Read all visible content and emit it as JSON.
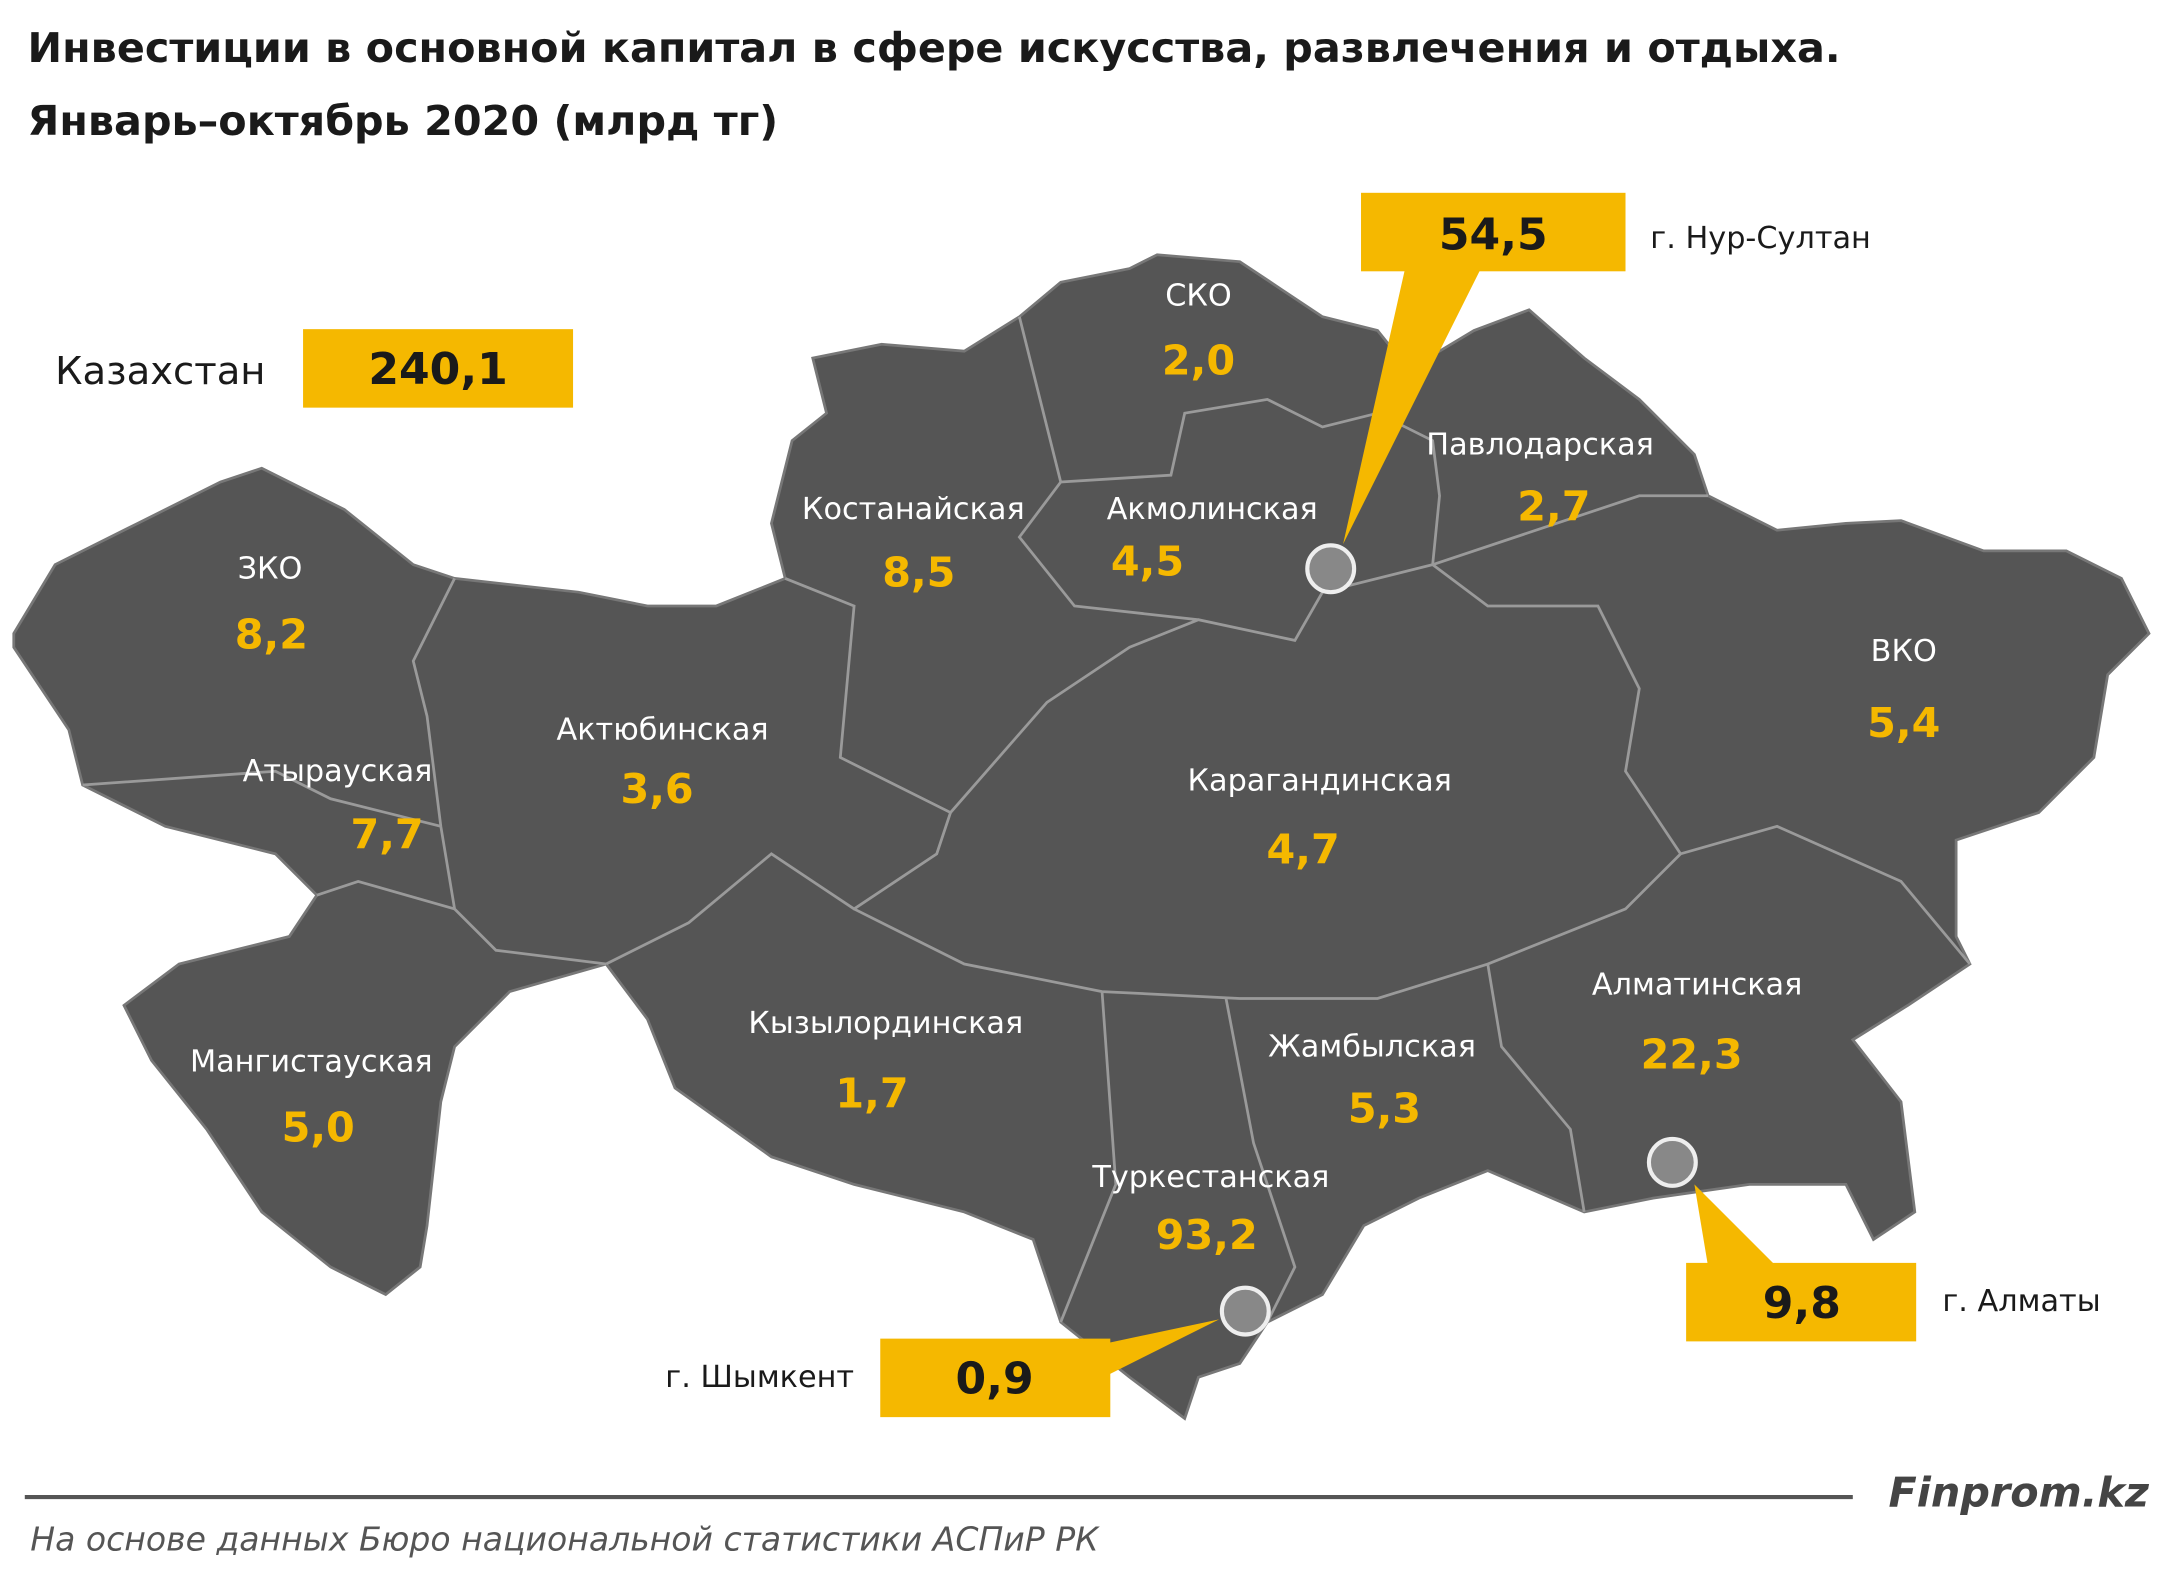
{
  "title": [
    "Инвестиции в основной капитал в сфере искусства, развлечения и отдыха.",
    "Январь–октябрь 2020 (млрд тг)"
  ],
  "total": {
    "name": "Казахстан",
    "value": "240,1"
  },
  "regions": [
    {
      "name": "СКО",
      "value": "2,0"
    },
    {
      "name": "Костанайская",
      "value": "8,5"
    },
    {
      "name": "Акмолинская",
      "value": "4,5"
    },
    {
      "name": "Павлодарская",
      "value": "2,7"
    },
    {
      "name": "ЗКО",
      "value": "8,2"
    },
    {
      "name": "Актюбинская",
      "value": "3,6"
    },
    {
      "name": "Атырауская",
      "value": "7,7"
    },
    {
      "name": "ВКО",
      "value": "5,4"
    },
    {
      "name": "Карагандинская",
      "value": "4,7"
    },
    {
      "name": "Алматинская",
      "value": "22,3"
    },
    {
      "name": "Кызылординская",
      "value": "1,7"
    },
    {
      "name": "Жамбылская",
      "value": "5,3"
    },
    {
      "name": "Мангистауская",
      "value": "5,0"
    },
    {
      "name": "Туркестанская",
      "value": "93,2"
    }
  ],
  "cities": [
    {
      "name": "г. Нур-Султан",
      "value": "54,5"
    },
    {
      "name": "г. Алматы",
      "value": "9,8"
    },
    {
      "name": "г. Шымкент",
      "value": "0,9"
    }
  ],
  "source": "На основе данных Бюро национальной статистики АСПиР РК",
  "brand": "Finprom.kz"
}
